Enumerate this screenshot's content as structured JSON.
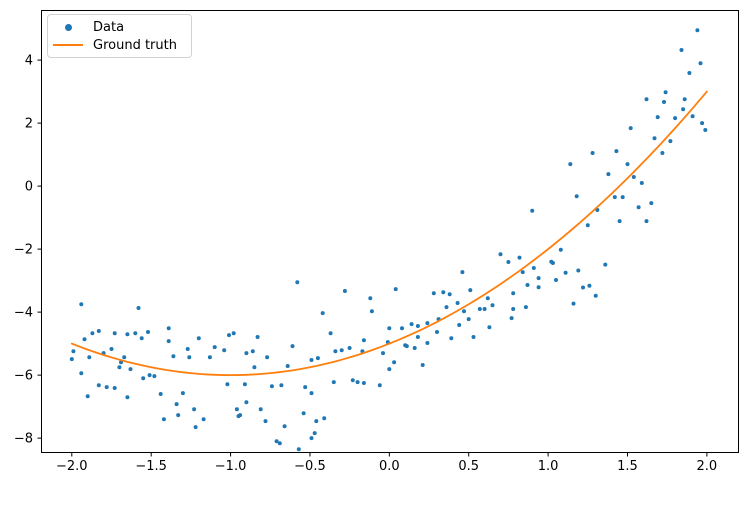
{
  "chart_data": {
    "type": "scatter",
    "title": "",
    "xlabel": "",
    "ylabel": "",
    "background": "#ffffff",
    "spine_color": "#000000",
    "grid": false,
    "legend": {
      "position": "upper left",
      "entries": [
        {
          "label": "Data",
          "marker": "dot",
          "color": "#1f77b4"
        },
        {
          "label": "Ground truth",
          "marker": "line",
          "color": "#ff7f0e"
        }
      ]
    },
    "axes": {
      "xlim": [
        -2.194,
        2.196
      ],
      "ylim": [
        -8.44,
        5.59
      ],
      "x_ticks": [
        -2.0,
        -1.5,
        -1.0,
        -0.5,
        0.0,
        0.5,
        1.0,
        1.5,
        2.0
      ],
      "x_tick_labels": [
        "−2.0",
        "−1.5",
        "−1.0",
        "−0.5",
        "0.0",
        "0.5",
        "1.0",
        "1.5",
        "2.0"
      ],
      "y_ticks": [
        4,
        2,
        0,
        -2,
        -4,
        -6,
        -8
      ],
      "y_tick_labels": [
        "4",
        "2",
        "0",
        "−2",
        "−4",
        "−6",
        "−8"
      ]
    },
    "series": [
      {
        "name": "Data",
        "kind": "scatter",
        "color": "#1f77b4",
        "marker_radius": 2,
        "points": [
          [
            -1.94,
            -3.75
          ],
          [
            -1.58,
            -3.87
          ],
          [
            -1.92,
            -4.86
          ],
          [
            -1.87,
            -4.67
          ],
          [
            -1.83,
            -4.6
          ],
          [
            -1.73,
            -4.67
          ],
          [
            -1.65,
            -4.7
          ],
          [
            -1.6,
            -4.67
          ],
          [
            -1.56,
            -4.83
          ],
          [
            -1.52,
            -4.63
          ],
          [
            -1.39,
            -4.51
          ],
          [
            -1.39,
            -4.92
          ],
          [
            -1.99,
            -5.24
          ],
          [
            -2.0,
            -5.49
          ],
          [
            -1.89,
            -5.43
          ],
          [
            -1.8,
            -5.3
          ],
          [
            -1.75,
            -5.17
          ],
          [
            -1.69,
            -5.59
          ],
          [
            -1.67,
            -5.43
          ],
          [
            -1.7,
            -5.75
          ],
          [
            -1.63,
            -5.81
          ],
          [
            -1.55,
            -6.1
          ],
          [
            -1.51,
            -6.0
          ],
          [
            -1.48,
            -6.03
          ],
          [
            -1.36,
            -5.4
          ],
          [
            -1.27,
            -5.17
          ],
          [
            -1.26,
            -5.43
          ],
          [
            -1.2,
            -4.83
          ],
          [
            -1.13,
            -5.43
          ],
          [
            -1.1,
            -5.11
          ],
          [
            -1.94,
            -5.94
          ],
          [
            -1.9,
            -6.67
          ],
          [
            -1.83,
            -6.32
          ],
          [
            -1.78,
            -6.38
          ],
          [
            -1.73,
            -6.41
          ],
          [
            -1.65,
            -6.7
          ],
          [
            -1.44,
            -6.6
          ],
          [
            -1.42,
            -7.4
          ],
          [
            -1.34,
            -6.92
          ],
          [
            -1.33,
            -7.27
          ],
          [
            -1.3,
            -6.57
          ],
          [
            -1.23,
            -7.08
          ],
          [
            -1.22,
            -7.65
          ],
          [
            -1.17,
            -7.4
          ],
          [
            -0.58,
            -3.05
          ],
          [
            -0.28,
            -3.33
          ],
          [
            -0.12,
            -3.56
          ],
          [
            -0.11,
            -3.97
          ],
          [
            -0.42,
            -4.03
          ],
          [
            -1.01,
            -4.73
          ],
          [
            -0.98,
            -4.67
          ],
          [
            -0.83,
            -4.79
          ],
          [
            -0.37,
            -4.67
          ],
          [
            -1.04,
            -5.21
          ],
          [
            -0.9,
            -5.3
          ],
          [
            -0.86,
            -5.24
          ],
          [
            -0.77,
            -5.43
          ],
          [
            -0.61,
            -5.08
          ],
          [
            -0.34,
            -5.24
          ],
          [
            -0.3,
            -5.21
          ],
          [
            -0.25,
            -5.14
          ],
          [
            -0.16,
            -4.89
          ],
          [
            -0.01,
            -4.95
          ],
          [
            -0.17,
            -5.24
          ],
          [
            -0.04,
            -5.3
          ],
          [
            -0.49,
            -5.52
          ],
          [
            -0.45,
            -5.46
          ],
          [
            -0.64,
            -5.71
          ],
          [
            -0.85,
            -5.75
          ],
          [
            -1.02,
            -6.29
          ],
          [
            -0.91,
            -6.29
          ],
          [
            -0.74,
            -6.35
          ],
          [
            -0.68,
            -6.32
          ],
          [
            -0.53,
            -6.38
          ],
          [
            -0.35,
            -6.22
          ],
          [
            -0.23,
            -6.16
          ],
          [
            -0.2,
            -6.22
          ],
          [
            -0.16,
            -6.25
          ],
          [
            -0.06,
            -6.32
          ],
          [
            -0.9,
            -6.86
          ],
          [
            -0.96,
            -7.08
          ],
          [
            -0.95,
            -7.3
          ],
          [
            -0.81,
            -7.08
          ],
          [
            -0.78,
            -7.46
          ],
          [
            -0.94,
            -7.27
          ],
          [
            -0.54,
            -7.21
          ],
          [
            -0.49,
            -6.57
          ],
          [
            -0.46,
            -7.46
          ],
          [
            -0.41,
            -7.37
          ],
          [
            -0.47,
            -7.84
          ],
          [
            -0.66,
            -7.62
          ],
          [
            -0.71,
            -8.1
          ],
          [
            -0.69,
            -8.16
          ],
          [
            -0.49,
            -8.0
          ],
          [
            -0.57,
            -8.35
          ],
          [
            0.04,
            -3.27
          ],
          [
            0.28,
            -3.4
          ],
          [
            0.34,
            -3.37
          ],
          [
            0.38,
            -3.43
          ],
          [
            0.46,
            -2.73
          ],
          [
            0.51,
            -3.3
          ],
          [
            0.36,
            -3.84
          ],
          [
            0.43,
            -3.71
          ],
          [
            0.47,
            -3.97
          ],
          [
            0.57,
            -3.9
          ],
          [
            0.6,
            -3.9
          ],
          [
            0.62,
            -3.56
          ],
          [
            0.65,
            -3.78
          ],
          [
            0.31,
            -4.22
          ],
          [
            0.44,
            -4.41
          ],
          [
            0.5,
            -4.22
          ],
          [
            0.14,
            -4.38
          ],
          [
            0.18,
            -4.44
          ],
          [
            0.24,
            -4.35
          ],
          [
            0.3,
            -4.63
          ],
          [
            0.08,
            -4.51
          ],
          [
            0.0,
            -4.51
          ],
          [
            0.1,
            -5.05
          ],
          [
            0.11,
            -5.08
          ],
          [
            0.16,
            -5.14
          ],
          [
            0.18,
            -4.79
          ],
          [
            0.24,
            -4.98
          ],
          [
            0.39,
            -4.83
          ],
          [
            0.53,
            -4.79
          ],
          [
            0.63,
            -4.48
          ],
          [
            0.03,
            -5.59
          ],
          [
            0.0,
            -5.81
          ],
          [
            0.21,
            -5.68
          ],
          [
            0.78,
            -3.9
          ],
          [
            0.77,
            -4.19
          ],
          [
            0.7,
            -2.16
          ],
          [
            0.75,
            -2.41
          ],
          [
            0.84,
            -2.73
          ],
          [
            0.91,
            -2.6
          ],
          [
            0.87,
            -3.14
          ],
          [
            0.94,
            -3.21
          ],
          [
            0.94,
            -2.92
          ],
          [
            1.03,
            -2.44
          ],
          [
            1.05,
            -2.98
          ],
          [
            0.78,
            -3.4
          ],
          [
            0.86,
            -3.84
          ],
          [
            0.9,
            -0.78
          ],
          [
            0.82,
            -2.27
          ],
          [
            1.02,
            -2.4
          ],
          [
            1.08,
            -2.02
          ],
          [
            1.36,
            -2.49
          ],
          [
            1.19,
            -2.68
          ],
          [
            1.11,
            -2.75
          ],
          [
            1.22,
            -3.22
          ],
          [
            1.26,
            -3.16
          ],
          [
            1.3,
            -3.48
          ],
          [
            1.16,
            -3.73
          ],
          [
            1.94,
            4.95
          ],
          [
            1.84,
            4.32
          ],
          [
            1.96,
            3.9
          ],
          [
            1.89,
            3.59
          ],
          [
            1.74,
            2.98
          ],
          [
            1.62,
            2.76
          ],
          [
            1.73,
            2.67
          ],
          [
            1.86,
            2.76
          ],
          [
            1.85,
            2.44
          ],
          [
            1.69,
            2.19
          ],
          [
            1.8,
            2.16
          ],
          [
            1.91,
            2.22
          ],
          [
            1.97,
            2.0
          ],
          [
            1.99,
            1.78
          ],
          [
            1.52,
            1.84
          ],
          [
            1.67,
            1.52
          ],
          [
            1.77,
            1.43
          ],
          [
            1.72,
            1.05
          ],
          [
            1.43,
            1.11
          ],
          [
            1.28,
            1.05
          ],
          [
            1.14,
            0.7
          ],
          [
            1.38,
            0.38
          ],
          [
            1.5,
            0.7
          ],
          [
            1.54,
            0.29
          ],
          [
            1.59,
            0.1
          ],
          [
            1.18,
            -0.32
          ],
          [
            1.42,
            -0.35
          ],
          [
            1.47,
            -0.35
          ],
          [
            1.31,
            -0.76
          ],
          [
            1.57,
            -0.67
          ],
          [
            1.65,
            -0.54
          ],
          [
            1.62,
            -1.11
          ],
          [
            1.45,
            -1.11
          ],
          [
            1.25,
            -1.24
          ]
        ]
      },
      {
        "name": "Ground truth",
        "kind": "line",
        "color": "#ff7f0e",
        "line_width": 1.8,
        "poly_coeffs": [
          1,
          2,
          -5
        ],
        "x_range": [
          -2,
          2
        ]
      }
    ]
  }
}
